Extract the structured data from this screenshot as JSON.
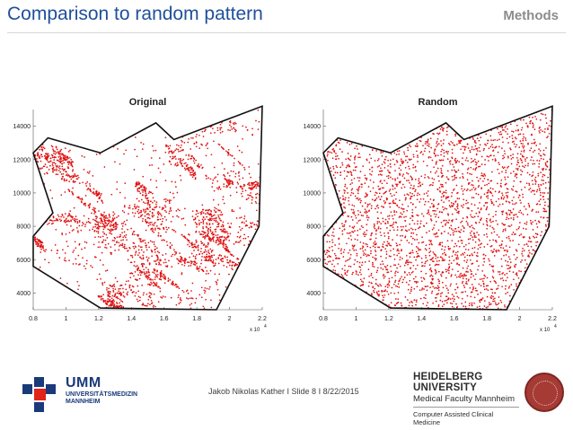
{
  "slide": {
    "title": "Comparison to random pattern",
    "section": "Methods",
    "footer": "Jakob Nikolas Kather I Slide 8 I 8/22/2015"
  },
  "logos": {
    "umm": {
      "abbr": "UMM",
      "line1": "UNIVERSITÄTSMEDIZIN",
      "line2": "MANNHEIM"
    },
    "heidelberg": {
      "title": "HEIDELBERG UNIVERSITY",
      "subtitle": "Medical Faculty Mannheim",
      "department": "Computer Assisted Clinical Medicine"
    }
  },
  "colors": {
    "title": "#1f4f9c",
    "points": "#e01010",
    "outline": "#111111"
  },
  "chart_data": [
    {
      "type": "scatter",
      "title": "Original",
      "xlim": [
        0.8,
        2.2
      ],
      "ylim": [
        3000,
        15000
      ],
      "x_ticks": [
        "0.8",
        "1",
        "1.2",
        "1.4",
        "1.6",
        "1.8",
        "2",
        "2.2"
      ],
      "y_ticks": [
        "4000",
        "6000",
        "8000",
        "10000",
        "12000",
        "14000"
      ],
      "x_multiplier": "x 10",
      "x_exponent": "4",
      "pattern": "clustered",
      "region_outline": [
        [
          0.8,
          12400
        ],
        [
          0.89,
          13300
        ],
        [
          1.21,
          12400
        ],
        [
          1.55,
          14200
        ],
        [
          1.66,
          13200
        ],
        [
          2.2,
          15200
        ],
        [
          2.18,
          8000
        ],
        [
          1.92,
          3000
        ],
        [
          1.21,
          3100
        ],
        [
          0.8,
          5600
        ],
        [
          0.8,
          7400
        ],
        [
          0.92,
          8800
        ]
      ]
    },
    {
      "type": "scatter",
      "title": "Random",
      "xlim": [
        0.8,
        2.2
      ],
      "ylim": [
        3000,
        15000
      ],
      "x_ticks": [
        "0.8",
        "1",
        "1.2",
        "1.4",
        "1.6",
        "1.8",
        "2",
        "2.2"
      ],
      "y_ticks": [
        "4000",
        "6000",
        "8000",
        "10000",
        "12000",
        "14000"
      ],
      "x_multiplier": "x 10",
      "x_exponent": "4",
      "pattern": "random",
      "region_outline": [
        [
          0.8,
          12400
        ],
        [
          0.89,
          13300
        ],
        [
          1.21,
          12400
        ],
        [
          1.55,
          14200
        ],
        [
          1.66,
          13200
        ],
        [
          2.2,
          15200
        ],
        [
          2.18,
          8000
        ],
        [
          1.92,
          3000
        ],
        [
          1.21,
          3100
        ],
        [
          0.8,
          5600
        ],
        [
          0.8,
          7400
        ],
        [
          0.92,
          8800
        ]
      ]
    }
  ]
}
